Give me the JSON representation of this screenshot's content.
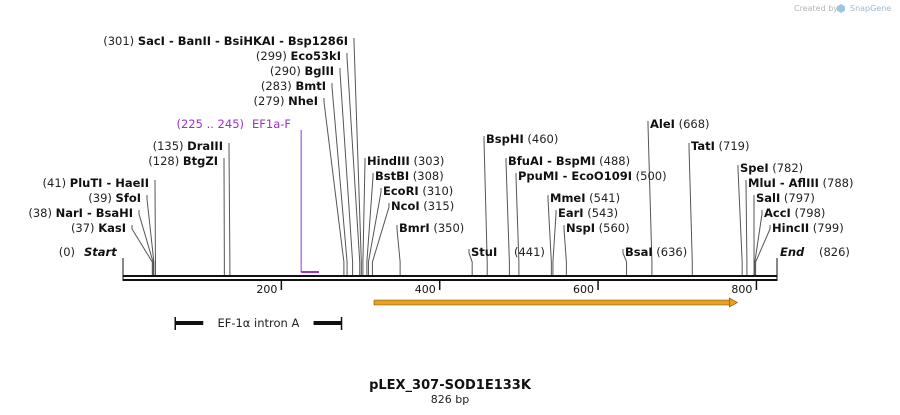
{
  "watermark": {
    "prefix": "Created by",
    "brand": "SnapGene"
  },
  "map": {
    "title": "pLEX_307-SOD1E133K",
    "length_label": "826 bp",
    "length": 826,
    "start_label": "Start",
    "start_pos": "(0)",
    "end_label": "End",
    "end_pos": "(826)",
    "ticks": [
      "200",
      "400",
      "600",
      "800"
    ],
    "tick_values": [
      200,
      400,
      600,
      800
    ]
  },
  "colors": {
    "backbone": "#111111",
    "primer": "#9b30d0",
    "feature_arrow": "#e8a020",
    "feature_label": "#222222"
  },
  "primer": {
    "range": "(225 .. 245)",
    "name": "EF1a-F",
    "start": 225,
    "end": 245
  },
  "features": [
    {
      "name": "EF-1α intron A",
      "start": 66,
      "end": 276,
      "type": "bar"
    },
    {
      "name": "",
      "start": 317,
      "end": 776,
      "type": "arrow"
    }
  ],
  "sites": [
    {
      "enzymes": [
        "SacI",
        "BanII",
        "BsiHKAI",
        "Bsp1286I"
      ],
      "pos_label": "(301)",
      "pos": 301
    },
    {
      "enzymes": [
        "Eco53kI"
      ],
      "pos_label": "(299)",
      "pos": 299
    },
    {
      "enzymes": [
        "BglII"
      ],
      "pos_label": "(290)",
      "pos": 290
    },
    {
      "enzymes": [
        "BmtI"
      ],
      "pos_label": "(283)",
      "pos": 283
    },
    {
      "enzymes": [
        "NheI"
      ],
      "pos_label": "(279)",
      "pos": 279
    },
    {
      "enzymes": [
        "DraIII"
      ],
      "pos_label": "(135)",
      "pos": 135
    },
    {
      "enzymes": [
        "BtgZI"
      ],
      "pos_label": "(128)",
      "pos": 128
    },
    {
      "enzymes": [
        "PluTI",
        "HaeII"
      ],
      "pos_label": "(41)",
      "pos": 41
    },
    {
      "enzymes": [
        "SfoI"
      ],
      "pos_label": "(39)",
      "pos": 39
    },
    {
      "enzymes": [
        "NarI",
        "BsaHI"
      ],
      "pos_label": "(38)",
      "pos": 38
    },
    {
      "enzymes": [
        "KasI"
      ],
      "pos_label": "(37)",
      "pos": 37
    },
    {
      "enzymes": [
        "HindIII"
      ],
      "pos_label": "(303)",
      "pos": 303
    },
    {
      "enzymes": [
        "BstBI"
      ],
      "pos_label": "(308)",
      "pos": 308
    },
    {
      "enzymes": [
        "EcoRI"
      ],
      "pos_label": "(310)",
      "pos": 310
    },
    {
      "enzymes": [
        "NcoI"
      ],
      "pos_label": "(315)",
      "pos": 315
    },
    {
      "enzymes": [
        "BmrI"
      ],
      "pos_label": "(350)",
      "pos": 350
    },
    {
      "enzymes": [
        "StuI"
      ],
      "pos_label": "(441)",
      "pos": 441
    },
    {
      "enzymes": [
        "BspHI"
      ],
      "pos_label": "(460)",
      "pos": 460
    },
    {
      "enzymes": [
        "BfuAI",
        "BspMI"
      ],
      "pos_label": "(488)",
      "pos": 488
    },
    {
      "enzymes": [
        "PpuMI",
        "EcoO109I"
      ],
      "pos_label": "(500)",
      "pos": 500
    },
    {
      "enzymes": [
        "MmeI"
      ],
      "pos_label": "(541)",
      "pos": 541
    },
    {
      "enzymes": [
        "EarI"
      ],
      "pos_label": "(543)",
      "pos": 543
    },
    {
      "enzymes": [
        "NspI"
      ],
      "pos_label": "(560)",
      "pos": 560
    },
    {
      "enzymes": [
        "BsaI"
      ],
      "pos_label": "(636)",
      "pos": 636
    },
    {
      "enzymes": [
        "AleI"
      ],
      "pos_label": "(668)",
      "pos": 668
    },
    {
      "enzymes": [
        "TatI"
      ],
      "pos_label": "(719)",
      "pos": 719
    },
    {
      "enzymes": [
        "SpeI"
      ],
      "pos_label": "(782)",
      "pos": 782
    },
    {
      "enzymes": [
        "MluI",
        "AflIII"
      ],
      "pos_label": "(788)",
      "pos": 788
    },
    {
      "enzymes": [
        "SalI"
      ],
      "pos_label": "(797)",
      "pos": 797
    },
    {
      "enzymes": [
        "AccI"
      ],
      "pos_label": "(798)",
      "pos": 798
    },
    {
      "enzymes": [
        "HincII"
      ],
      "pos_label": "(799)",
      "pos": 799
    }
  ]
}
